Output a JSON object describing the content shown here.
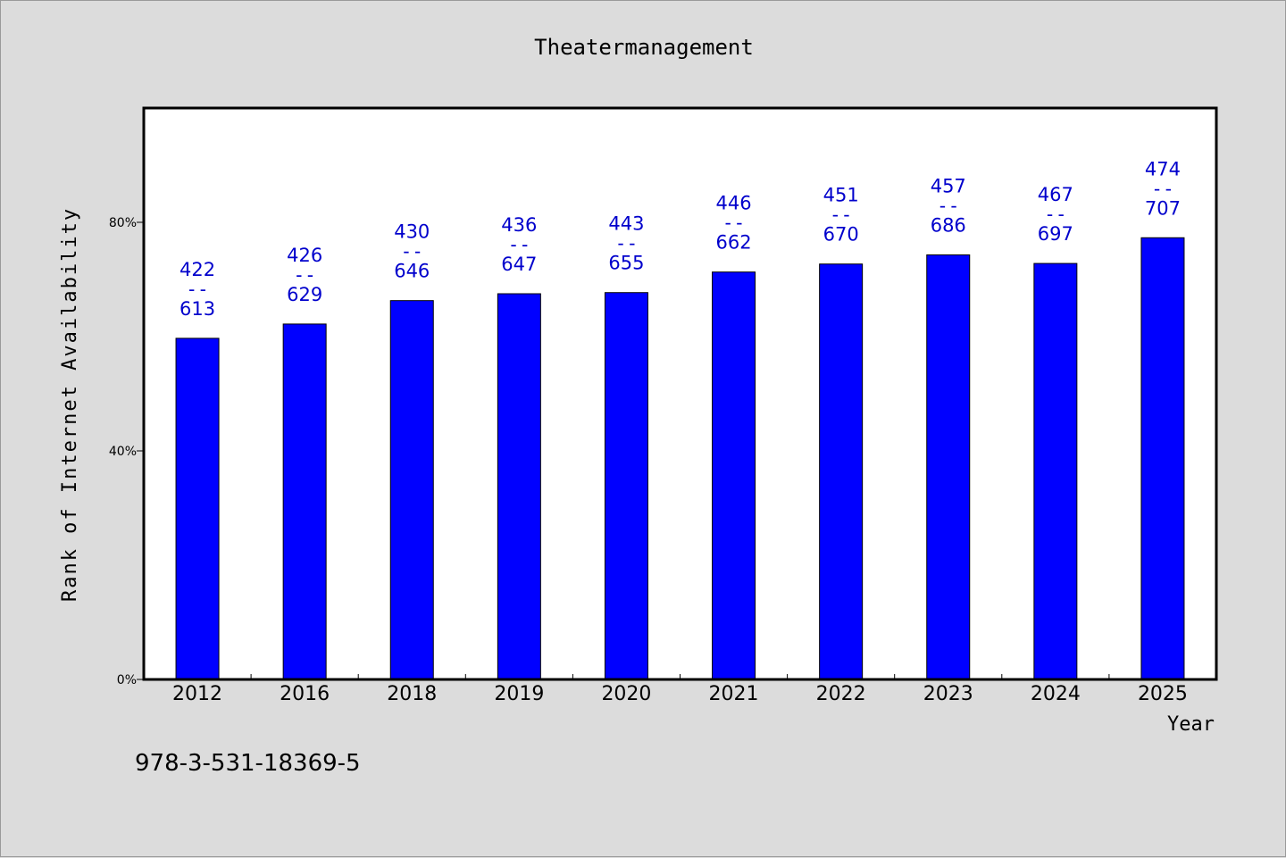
{
  "chart_data": {
    "type": "bar",
    "title": "Theatermanagement",
    "xlabel": "Year",
    "ylabel": "Rank of Internet Availability",
    "categories": [
      "2012",
      "2016",
      "2018",
      "2019",
      "2020",
      "2021",
      "2022",
      "2023",
      "2024",
      "2025"
    ],
    "values": [
      59.7,
      62.2,
      66.3,
      67.5,
      67.7,
      71.3,
      72.7,
      74.3,
      72.8,
      77.3
    ],
    "bar_labels": [
      {
        "top": "422",
        "sep": "--",
        "bottom": "613"
      },
      {
        "top": "426",
        "sep": "--",
        "bottom": "629"
      },
      {
        "top": "430",
        "sep": "--",
        "bottom": "646"
      },
      {
        "top": "436",
        "sep": "--",
        "bottom": "647"
      },
      {
        "top": "443",
        "sep": "--",
        "bottom": "655"
      },
      {
        "top": "446",
        "sep": "--",
        "bottom": "662"
      },
      {
        "top": "451",
        "sep": "--",
        "bottom": "670"
      },
      {
        "top": "457",
        "sep": "--",
        "bottom": "686"
      },
      {
        "top": "467",
        "sep": "--",
        "bottom": "697"
      },
      {
        "top": "474",
        "sep": "--",
        "bottom": "707"
      }
    ],
    "y_ticks": [
      0,
      40,
      80
    ],
    "y_tick_labels": [
      "0%",
      "40%",
      "80%"
    ],
    "ylim": [
      0,
      100
    ],
    "grid": false,
    "legend": "none",
    "bar_color": "#0000ff",
    "label_color": "#0000cc"
  },
  "footer": {
    "isbn": "978-3-531-18369-5"
  }
}
